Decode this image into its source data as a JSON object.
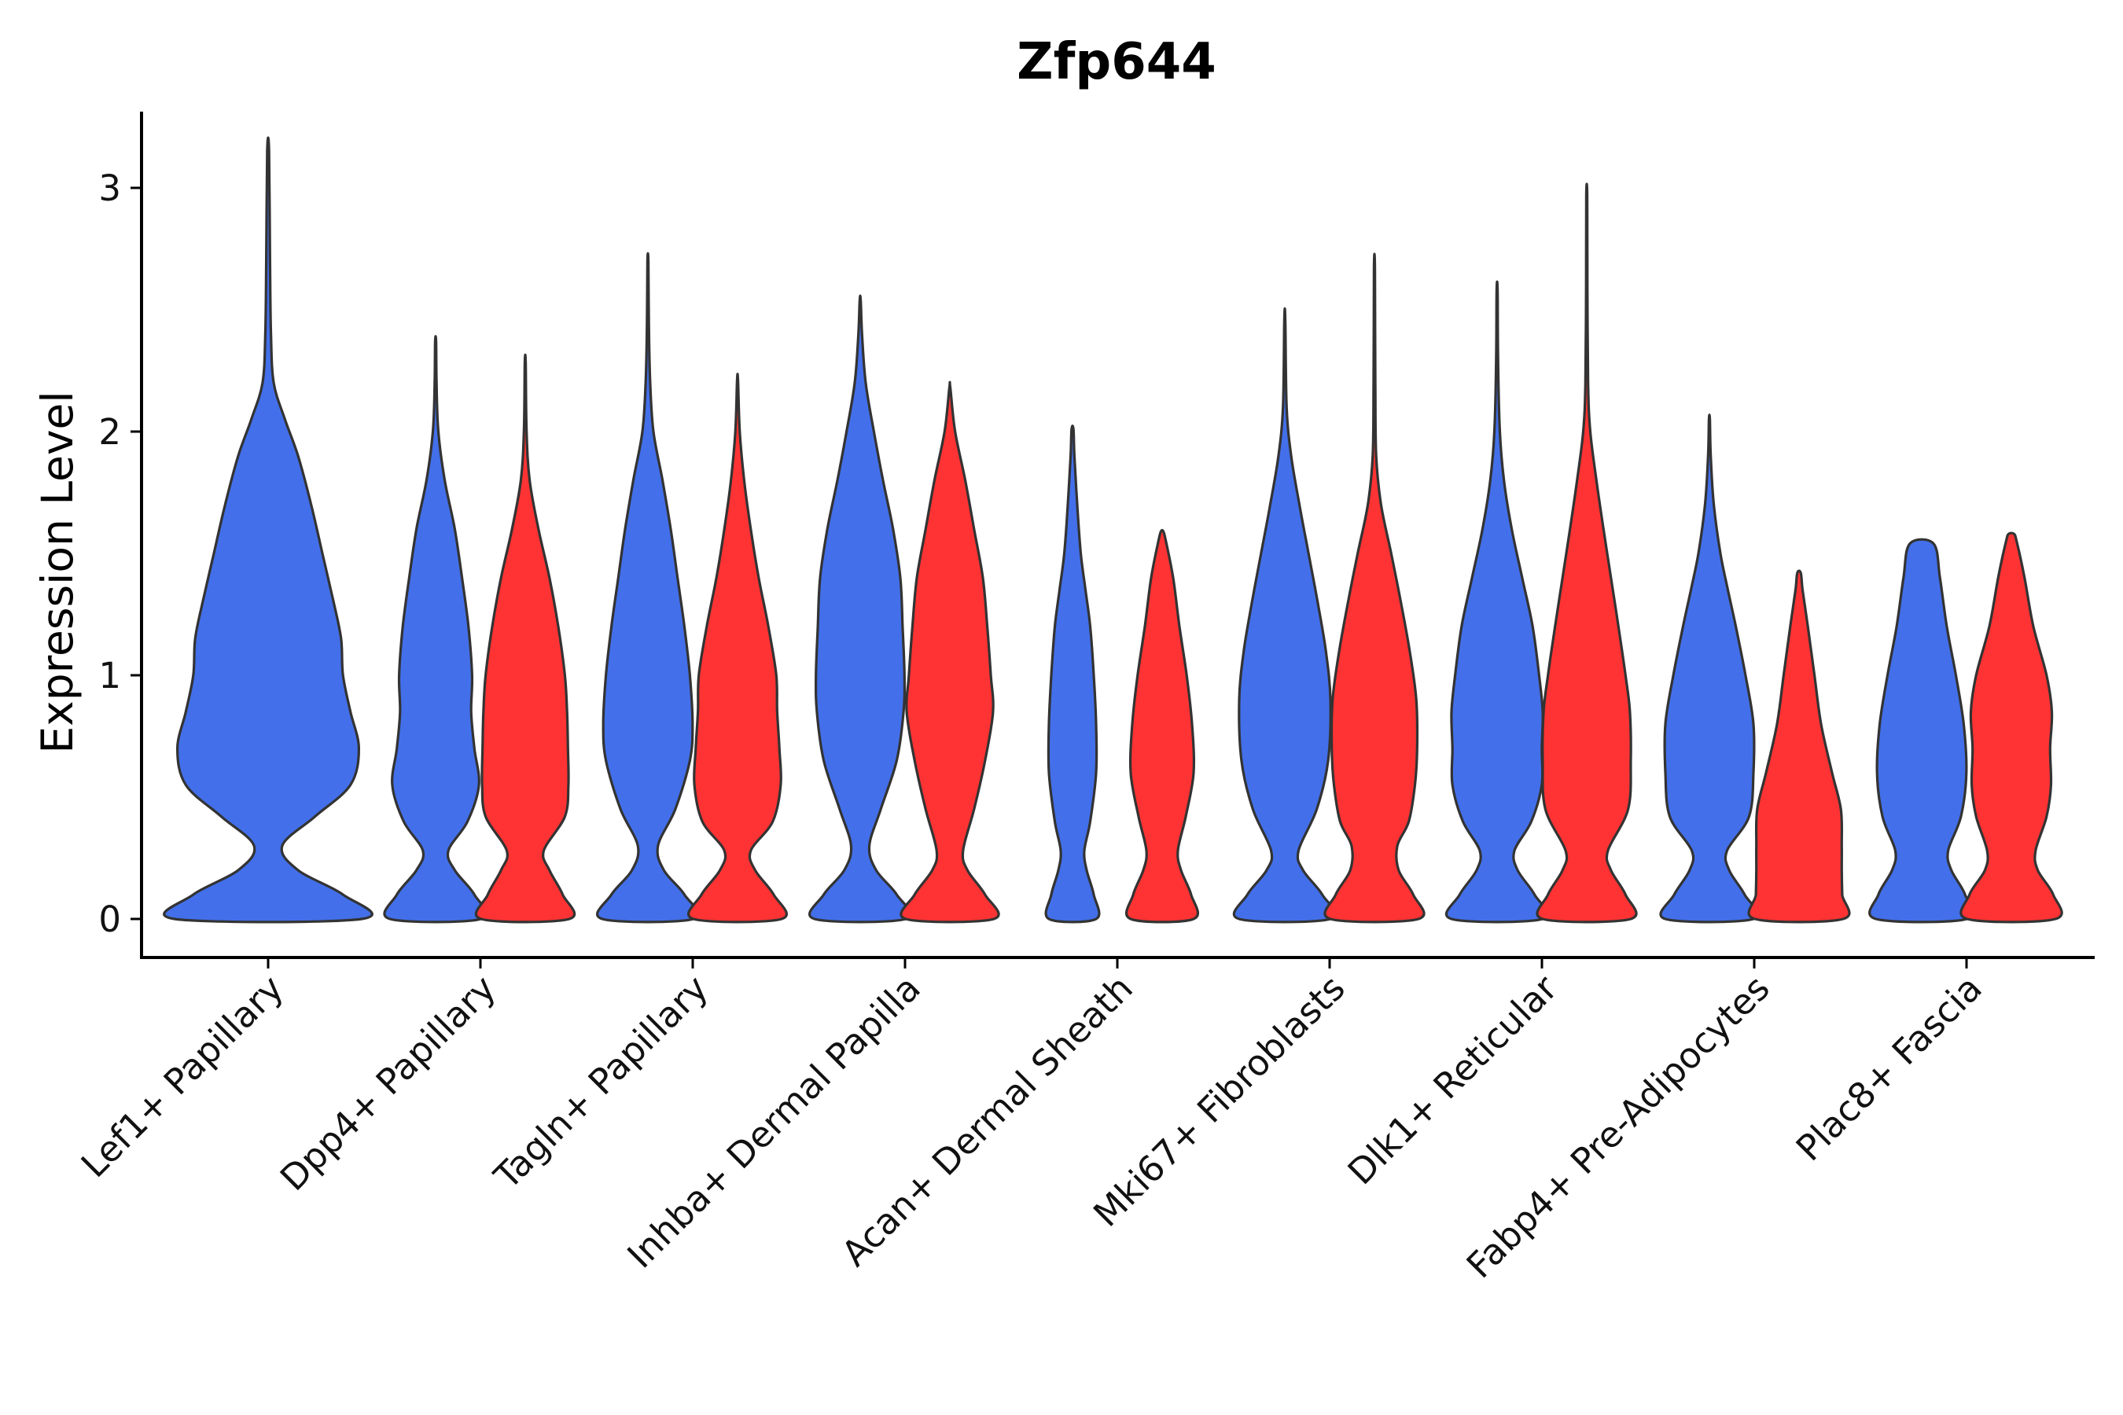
{
  "chart_data": {
    "type": "violin",
    "title": "Zfp644",
    "xlabel": "",
    "ylabel": "Expression Level",
    "ylim": [
      -0.16,
      3.3
    ],
    "yticks": [
      0,
      1,
      2,
      3
    ],
    "categories": [
      "Lef1+ Papillary",
      "Dpp4+ Papillary",
      "Tagln+ Papillary",
      "Inhba+ Dermal Papilla",
      "Acan+ Dermal Sheath",
      "Mki67+ Fibroblasts",
      "Dlk1+ Reticular",
      "Fabp4+ Pre-Adipocytes",
      "Plac8+ Fascia"
    ],
    "colors": {
      "blue": "#4370EA",
      "red": "#FF3333"
    },
    "violins": [
      {
        "category": "Lef1+ Papillary",
        "group": "blue",
        "max": 3.15,
        "profile": [
          [
            0,
            1.0
          ],
          [
            0.1,
            0.8
          ],
          [
            0.2,
            0.32
          ],
          [
            0.3,
            0.15
          ],
          [
            0.42,
            0.5
          ],
          [
            0.55,
            0.88
          ],
          [
            0.7,
            0.97
          ],
          [
            0.85,
            0.88
          ],
          [
            1.0,
            0.8
          ],
          [
            1.15,
            0.78
          ],
          [
            1.3,
            0.7
          ],
          [
            1.5,
            0.58
          ],
          [
            1.7,
            0.46
          ],
          [
            1.9,
            0.32
          ],
          [
            2.05,
            0.18
          ],
          [
            2.2,
            0.06
          ],
          [
            2.4,
            0.03
          ],
          [
            2.7,
            0.02
          ],
          [
            3.15,
            0.01
          ]
        ]
      },
      {
        "category": "Dpp4+ Papillary",
        "group": "blue",
        "max": 2.37,
        "profile": [
          [
            0,
            1.0
          ],
          [
            0.1,
            0.85
          ],
          [
            0.2,
            0.42
          ],
          [
            0.28,
            0.28
          ],
          [
            0.4,
            0.7
          ],
          [
            0.55,
            0.95
          ],
          [
            0.7,
            0.85
          ],
          [
            0.85,
            0.78
          ],
          [
            1.0,
            0.8
          ],
          [
            1.2,
            0.72
          ],
          [
            1.4,
            0.58
          ],
          [
            1.6,
            0.42
          ],
          [
            1.8,
            0.2
          ],
          [
            2.0,
            0.06
          ],
          [
            2.2,
            0.02
          ],
          [
            2.37,
            0.01
          ]
        ]
      },
      {
        "category": "Dpp4+ Papillary",
        "group": "red",
        "max": 2.28,
        "profile": [
          [
            0,
            1.0
          ],
          [
            0.1,
            0.85
          ],
          [
            0.2,
            0.55
          ],
          [
            0.28,
            0.42
          ],
          [
            0.42,
            0.9
          ],
          [
            0.55,
            0.98
          ],
          [
            0.7,
            0.97
          ],
          [
            0.85,
            0.95
          ],
          [
            1.0,
            0.9
          ],
          [
            1.2,
            0.75
          ],
          [
            1.4,
            0.55
          ],
          [
            1.6,
            0.3
          ],
          [
            1.8,
            0.1
          ],
          [
            2.0,
            0.03
          ],
          [
            2.28,
            0.01
          ]
        ]
      },
      {
        "category": "Tagln+ Papillary",
        "group": "blue",
        "max": 2.7,
        "profile": [
          [
            0,
            1.0
          ],
          [
            0.1,
            0.8
          ],
          [
            0.2,
            0.35
          ],
          [
            0.3,
            0.22
          ],
          [
            0.45,
            0.6
          ],
          [
            0.65,
            0.92
          ],
          [
            0.8,
            0.98
          ],
          [
            1.0,
            0.92
          ],
          [
            1.2,
            0.8
          ],
          [
            1.4,
            0.65
          ],
          [
            1.6,
            0.5
          ],
          [
            1.8,
            0.32
          ],
          [
            2.0,
            0.12
          ],
          [
            2.2,
            0.05
          ],
          [
            2.45,
            0.02
          ],
          [
            2.7,
            0.01
          ]
        ]
      },
      {
        "category": "Tagln+ Papillary",
        "group": "red",
        "max": 2.21,
        "profile": [
          [
            0,
            1.0
          ],
          [
            0.1,
            0.82
          ],
          [
            0.2,
            0.4
          ],
          [
            0.28,
            0.3
          ],
          [
            0.4,
            0.8
          ],
          [
            0.55,
            0.98
          ],
          [
            0.7,
            0.95
          ],
          [
            0.85,
            0.9
          ],
          [
            1.0,
            0.88
          ],
          [
            1.2,
            0.7
          ],
          [
            1.4,
            0.48
          ],
          [
            1.6,
            0.3
          ],
          [
            1.8,
            0.15
          ],
          [
            2.0,
            0.05
          ],
          [
            2.21,
            0.01
          ]
        ]
      },
      {
        "category": "Inhba+ Dermal Papilla",
        "group": "blue",
        "max": 2.54,
        "profile": [
          [
            0,
            1.0
          ],
          [
            0.1,
            0.8
          ],
          [
            0.2,
            0.35
          ],
          [
            0.3,
            0.2
          ],
          [
            0.45,
            0.45
          ],
          [
            0.65,
            0.8
          ],
          [
            0.85,
            0.95
          ],
          [
            1.0,
            0.97
          ],
          [
            1.2,
            0.93
          ],
          [
            1.4,
            0.88
          ],
          [
            1.6,
            0.72
          ],
          [
            1.8,
            0.5
          ],
          [
            2.0,
            0.3
          ],
          [
            2.2,
            0.12
          ],
          [
            2.4,
            0.04
          ],
          [
            2.54,
            0.01
          ]
        ]
      },
      {
        "category": "Inhba+ Dermal Papilla",
        "group": "red",
        "max": 2.18,
        "profile": [
          [
            0,
            1.0
          ],
          [
            0.1,
            0.8
          ],
          [
            0.2,
            0.4
          ],
          [
            0.28,
            0.3
          ],
          [
            0.45,
            0.55
          ],
          [
            0.65,
            0.8
          ],
          [
            0.85,
            0.98
          ],
          [
            1.0,
            0.93
          ],
          [
            1.2,
            0.85
          ],
          [
            1.4,
            0.75
          ],
          [
            1.6,
            0.55
          ],
          [
            1.8,
            0.35
          ],
          [
            2.0,
            0.12
          ],
          [
            2.18,
            0.01
          ]
        ]
      },
      {
        "category": "Acan+ Dermal Sheath",
        "group": "blue",
        "max": 2.01,
        "profile": [
          [
            0,
            1.0
          ],
          [
            0.1,
            0.9
          ],
          [
            0.2,
            0.6
          ],
          [
            0.28,
            0.5
          ],
          [
            0.4,
            0.75
          ],
          [
            0.6,
            1.0
          ],
          [
            0.8,
            1.0
          ],
          [
            1.0,
            0.9
          ],
          [
            1.2,
            0.75
          ],
          [
            1.35,
            0.55
          ],
          [
            1.5,
            0.35
          ],
          [
            1.7,
            0.2
          ],
          [
            1.9,
            0.08
          ],
          [
            2.01,
            0.04
          ]
        ]
      },
      {
        "category": "Acan+ Dermal Sheath",
        "group": "red",
        "max": 1.59,
        "profile": [
          [
            0,
            1.0
          ],
          [
            0.1,
            0.92
          ],
          [
            0.2,
            0.6
          ],
          [
            0.28,
            0.5
          ],
          [
            0.42,
            0.75
          ],
          [
            0.6,
            1.0
          ],
          [
            0.8,
            0.95
          ],
          [
            1.0,
            0.78
          ],
          [
            1.2,
            0.55
          ],
          [
            1.4,
            0.35
          ],
          [
            1.55,
            0.12
          ],
          [
            1.59,
            0.04
          ]
        ]
      },
      {
        "category": "Mki67+ Fibroblasts",
        "group": "blue",
        "max": 2.46,
        "profile": [
          [
            0,
            1.0
          ],
          [
            0.1,
            0.82
          ],
          [
            0.2,
            0.4
          ],
          [
            0.28,
            0.3
          ],
          [
            0.45,
            0.7
          ],
          [
            0.65,
            0.95
          ],
          [
            0.9,
            1.0
          ],
          [
            1.1,
            0.9
          ],
          [
            1.3,
            0.72
          ],
          [
            1.5,
            0.52
          ],
          [
            1.7,
            0.32
          ],
          [
            1.9,
            0.14
          ],
          [
            2.1,
            0.04
          ],
          [
            2.46,
            0.01
          ]
        ]
      },
      {
        "category": "Mki67+ Fibroblasts",
        "group": "red",
        "max": 2.67,
        "profile": [
          [
            0,
            1.0
          ],
          [
            0.1,
            0.88
          ],
          [
            0.2,
            0.55
          ],
          [
            0.3,
            0.52
          ],
          [
            0.4,
            0.78
          ],
          [
            0.55,
            0.92
          ],
          [
            0.7,
            0.97
          ],
          [
            0.9,
            0.95
          ],
          [
            1.1,
            0.8
          ],
          [
            1.3,
            0.6
          ],
          [
            1.5,
            0.38
          ],
          [
            1.7,
            0.15
          ],
          [
            1.9,
            0.04
          ],
          [
            2.2,
            0.02
          ],
          [
            2.67,
            0.01
          ]
        ]
      },
      {
        "category": "Dlk1+ Reticular",
        "group": "blue",
        "max": 2.58,
        "profile": [
          [
            0,
            1.0
          ],
          [
            0.1,
            0.82
          ],
          [
            0.2,
            0.45
          ],
          [
            0.28,
            0.38
          ],
          [
            0.4,
            0.75
          ],
          [
            0.55,
            0.98
          ],
          [
            0.7,
            0.98
          ],
          [
            0.85,
            1.0
          ],
          [
            1.0,
            0.92
          ],
          [
            1.2,
            0.78
          ],
          [
            1.4,
            0.55
          ],
          [
            1.6,
            0.32
          ],
          [
            1.8,
            0.15
          ],
          [
            2.0,
            0.06
          ],
          [
            2.3,
            0.02
          ],
          [
            2.58,
            0.01
          ]
        ]
      },
      {
        "category": "Dlk1+ Reticular",
        "group": "red",
        "max": 2.97,
        "profile": [
          [
            0,
            1.0
          ],
          [
            0.1,
            0.88
          ],
          [
            0.2,
            0.55
          ],
          [
            0.28,
            0.48
          ],
          [
            0.45,
            0.94
          ],
          [
            0.65,
            1.0
          ],
          [
            0.85,
            0.98
          ],
          [
            1.0,
            0.88
          ],
          [
            1.2,
            0.72
          ],
          [
            1.4,
            0.55
          ],
          [
            1.6,
            0.38
          ],
          [
            1.8,
            0.22
          ],
          [
            2.0,
            0.08
          ],
          [
            2.2,
            0.03
          ],
          [
            2.6,
            0.015
          ],
          [
            2.97,
            0.01
          ]
        ]
      },
      {
        "category": "Fabp4+ Pre-Adipocytes",
        "group": "blue",
        "max": 2.05,
        "profile": [
          [
            0,
            1.0
          ],
          [
            0.1,
            0.8
          ],
          [
            0.2,
            0.45
          ],
          [
            0.28,
            0.4
          ],
          [
            0.42,
            0.9
          ],
          [
            0.6,
            1.0
          ],
          [
            0.8,
            1.0
          ],
          [
            1.0,
            0.82
          ],
          [
            1.2,
            0.6
          ],
          [
            1.35,
            0.42
          ],
          [
            1.5,
            0.25
          ],
          [
            1.7,
            0.1
          ],
          [
            1.9,
            0.03
          ],
          [
            2.05,
            0.01
          ]
        ]
      },
      {
        "category": "Fabp4+ Pre-Adipocytes",
        "group": "red",
        "max": 1.42,
        "profile": [
          [
            0,
            1.0
          ],
          [
            0.1,
            0.98
          ],
          [
            0.2,
            0.97
          ],
          [
            0.3,
            0.97
          ],
          [
            0.45,
            0.95
          ],
          [
            0.6,
            0.75
          ],
          [
            0.8,
            0.5
          ],
          [
            1.0,
            0.35
          ],
          [
            1.2,
            0.2
          ],
          [
            1.35,
            0.08
          ],
          [
            1.42,
            0.04
          ]
        ]
      },
      {
        "category": "Plac8+ Fascia",
        "group": "blue",
        "max": 1.54,
        "profile": [
          [
            0,
            1.0
          ],
          [
            0.1,
            0.95
          ],
          [
            0.2,
            0.65
          ],
          [
            0.28,
            0.58
          ],
          [
            0.42,
            0.86
          ],
          [
            0.6,
            0.98
          ],
          [
            0.8,
            0.92
          ],
          [
            1.0,
            0.75
          ],
          [
            1.2,
            0.55
          ],
          [
            1.4,
            0.4
          ],
          [
            1.54,
            0.26
          ]
        ]
      },
      {
        "category": "Plac8+ Fascia",
        "group": "red",
        "max": 1.58,
        "profile": [
          [
            0,
            1.0
          ],
          [
            0.1,
            0.95
          ],
          [
            0.2,
            0.6
          ],
          [
            0.28,
            0.55
          ],
          [
            0.42,
            0.8
          ],
          [
            0.55,
            0.9
          ],
          [
            0.7,
            0.88
          ],
          [
            0.85,
            0.92
          ],
          [
            1.0,
            0.8
          ],
          [
            1.2,
            0.5
          ],
          [
            1.4,
            0.3
          ],
          [
            1.55,
            0.12
          ],
          [
            1.58,
            0.06
          ]
        ]
      }
    ]
  }
}
